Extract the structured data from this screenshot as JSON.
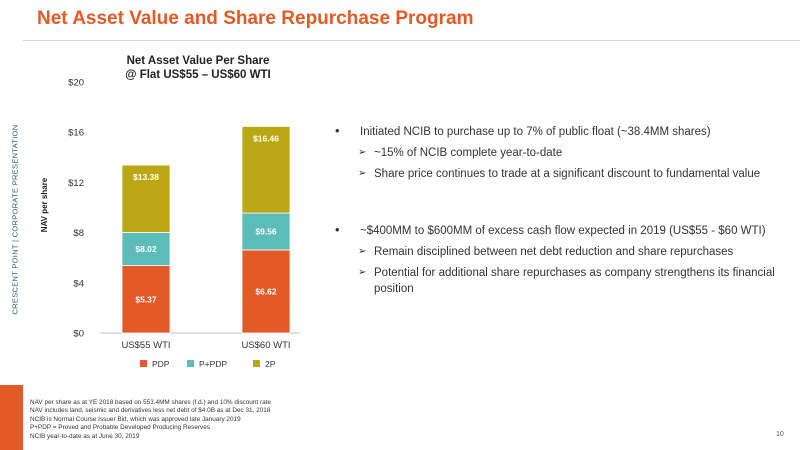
{
  "sidebar": {
    "text": "CRESCENT POINT   |   CORPORATE PRESENTATION"
  },
  "header": {
    "title": "Net Asset Value and Share Repurchase Program"
  },
  "chart_data": {
    "type": "bar",
    "stacked": true,
    "title_line1": "Net Asset Value Per Share",
    "title_line2": "@ Flat US$55 – US$60 WTI",
    "ylabel": "NAV per share",
    "ylim": [
      0,
      20
    ],
    "yticks": [
      0,
      4,
      8,
      12,
      16,
      20
    ],
    "ytick_labels": [
      "$0",
      "$4",
      "$8",
      "$12",
      "$16",
      "$20"
    ],
    "categories": [
      "US$55 WTI",
      "US$60 WTI"
    ],
    "series": [
      {
        "name": "PDP",
        "color": "#e35a27",
        "values": [
          5.37,
          6.62
        ],
        "labels": [
          "$5.37",
          "$6.62"
        ]
      },
      {
        "name": "P+PDP",
        "color": "#5bbcb8",
        "values": [
          2.64,
          2.94
        ],
        "labels": [
          "$8.02",
          "$9.56"
        ]
      },
      {
        "name": "2P",
        "color": "#bba714",
        "values": [
          5.37,
          6.9
        ],
        "labels": [
          "$13.38",
          "$16.46"
        ]
      }
    ],
    "legend_position": "bottom"
  },
  "bullets": [
    {
      "text": "Initiated NCIB to purchase up to 7% of public float (~38.4MM shares)",
      "subs": [
        "~15% of NCIB complete year-to-date",
        "Share price continues to trade at a significant discount to fundamental value"
      ]
    },
    {
      "text": "~$400MM to $600MM of excess cash flow expected in 2019 (US$55 - $60 WTI)",
      "subs": [
        "Remain disciplined between net debt reduction and share repurchases",
        "Potential for additional share repurchases as company strengthens its financial position"
      ]
    }
  ],
  "footnotes": [
    "NAV per share as at YE 2018 based on 553.4MM shares (f.d.) and 10% discount rate",
    "NAV includes land, seismic and derivatives less net debt of $4.0B as at Dec 31, 2018",
    "NCIB is Normal Course Issuer Bid, which was approved late January 2019",
    "P+PDP = Proved and Probable Developed Producing Reserves",
    "NCIB year-to-date as at June 30, 2019"
  ],
  "page_number": "10"
}
